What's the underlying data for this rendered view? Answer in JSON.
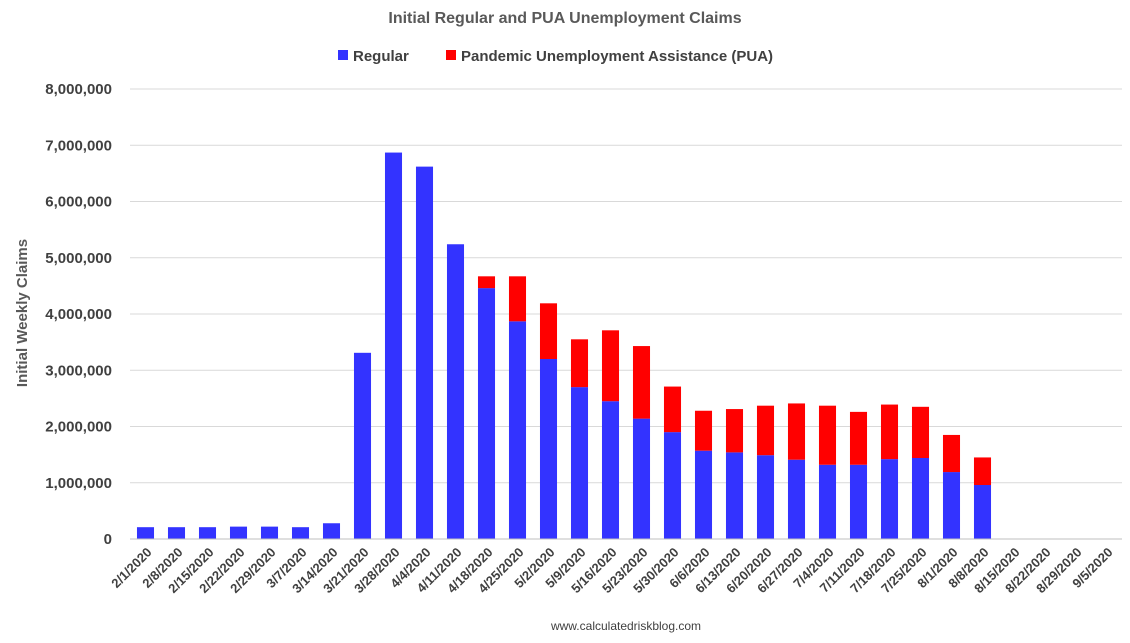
{
  "chart_data": {
    "type": "bar",
    "stacked": true,
    "title": "Initial Regular and PUA Unemployment Claims",
    "ylabel": "Initial Weekly Claims",
    "xlabel": "",
    "source": "www.calculatedriskblog.com",
    "ylim": [
      0,
      8000000
    ],
    "yticks": [
      0,
      1000000,
      2000000,
      3000000,
      4000000,
      5000000,
      6000000,
      7000000,
      8000000
    ],
    "ytick_labels": [
      "0",
      "1,000,000",
      "2,000,000",
      "3,000,000",
      "4,000,000",
      "5,000,000",
      "6,000,000",
      "7,000,000",
      "8,000,000"
    ],
    "grid": true,
    "legend": "top-center",
    "categories": [
      "2/1/2020",
      "2/8/2020",
      "2/15/2020",
      "2/22/2020",
      "2/29/2020",
      "3/7/2020",
      "3/14/2020",
      "3/21/2020",
      "3/28/2020",
      "4/4/2020",
      "4/11/2020",
      "4/18/2020",
      "4/25/2020",
      "5/2/2020",
      "5/9/2020",
      "5/16/2020",
      "5/23/2020",
      "5/30/2020",
      "6/6/2020",
      "6/13/2020",
      "6/20/2020",
      "6/27/2020",
      "7/4/2020",
      "7/11/2020",
      "7/18/2020",
      "7/25/2020",
      "8/1/2020",
      "8/8/2020",
      "8/15/2020",
      "8/22/2020",
      "8/29/2020",
      "9/5/2020"
    ],
    "series": [
      {
        "name": "Regular",
        "color": "#3333ff",
        "values": [
          210000,
          210000,
          210000,
          220000,
          220000,
          210000,
          280000,
          3310000,
          6870000,
          6620000,
          5240000,
          4460000,
          3870000,
          3200000,
          2700000,
          2450000,
          2140000,
          1900000,
          1570000,
          1540000,
          1490000,
          1410000,
          1320000,
          1320000,
          1420000,
          1440000,
          1190000,
          960000,
          null,
          null,
          null,
          null
        ]
      },
      {
        "name": "Pandemic Unemployment Assistance (PUA)",
        "color": "#ff0000",
        "values": [
          0,
          0,
          0,
          0,
          0,
          0,
          0,
          0,
          0,
          0,
          0,
          210000,
          800000,
          990000,
          850000,
          1260000,
          1290000,
          810000,
          710000,
          770000,
          880000,
          1000000,
          1050000,
          940000,
          970000,
          910000,
          660000,
          490000,
          null,
          null,
          null,
          null
        ]
      }
    ]
  }
}
